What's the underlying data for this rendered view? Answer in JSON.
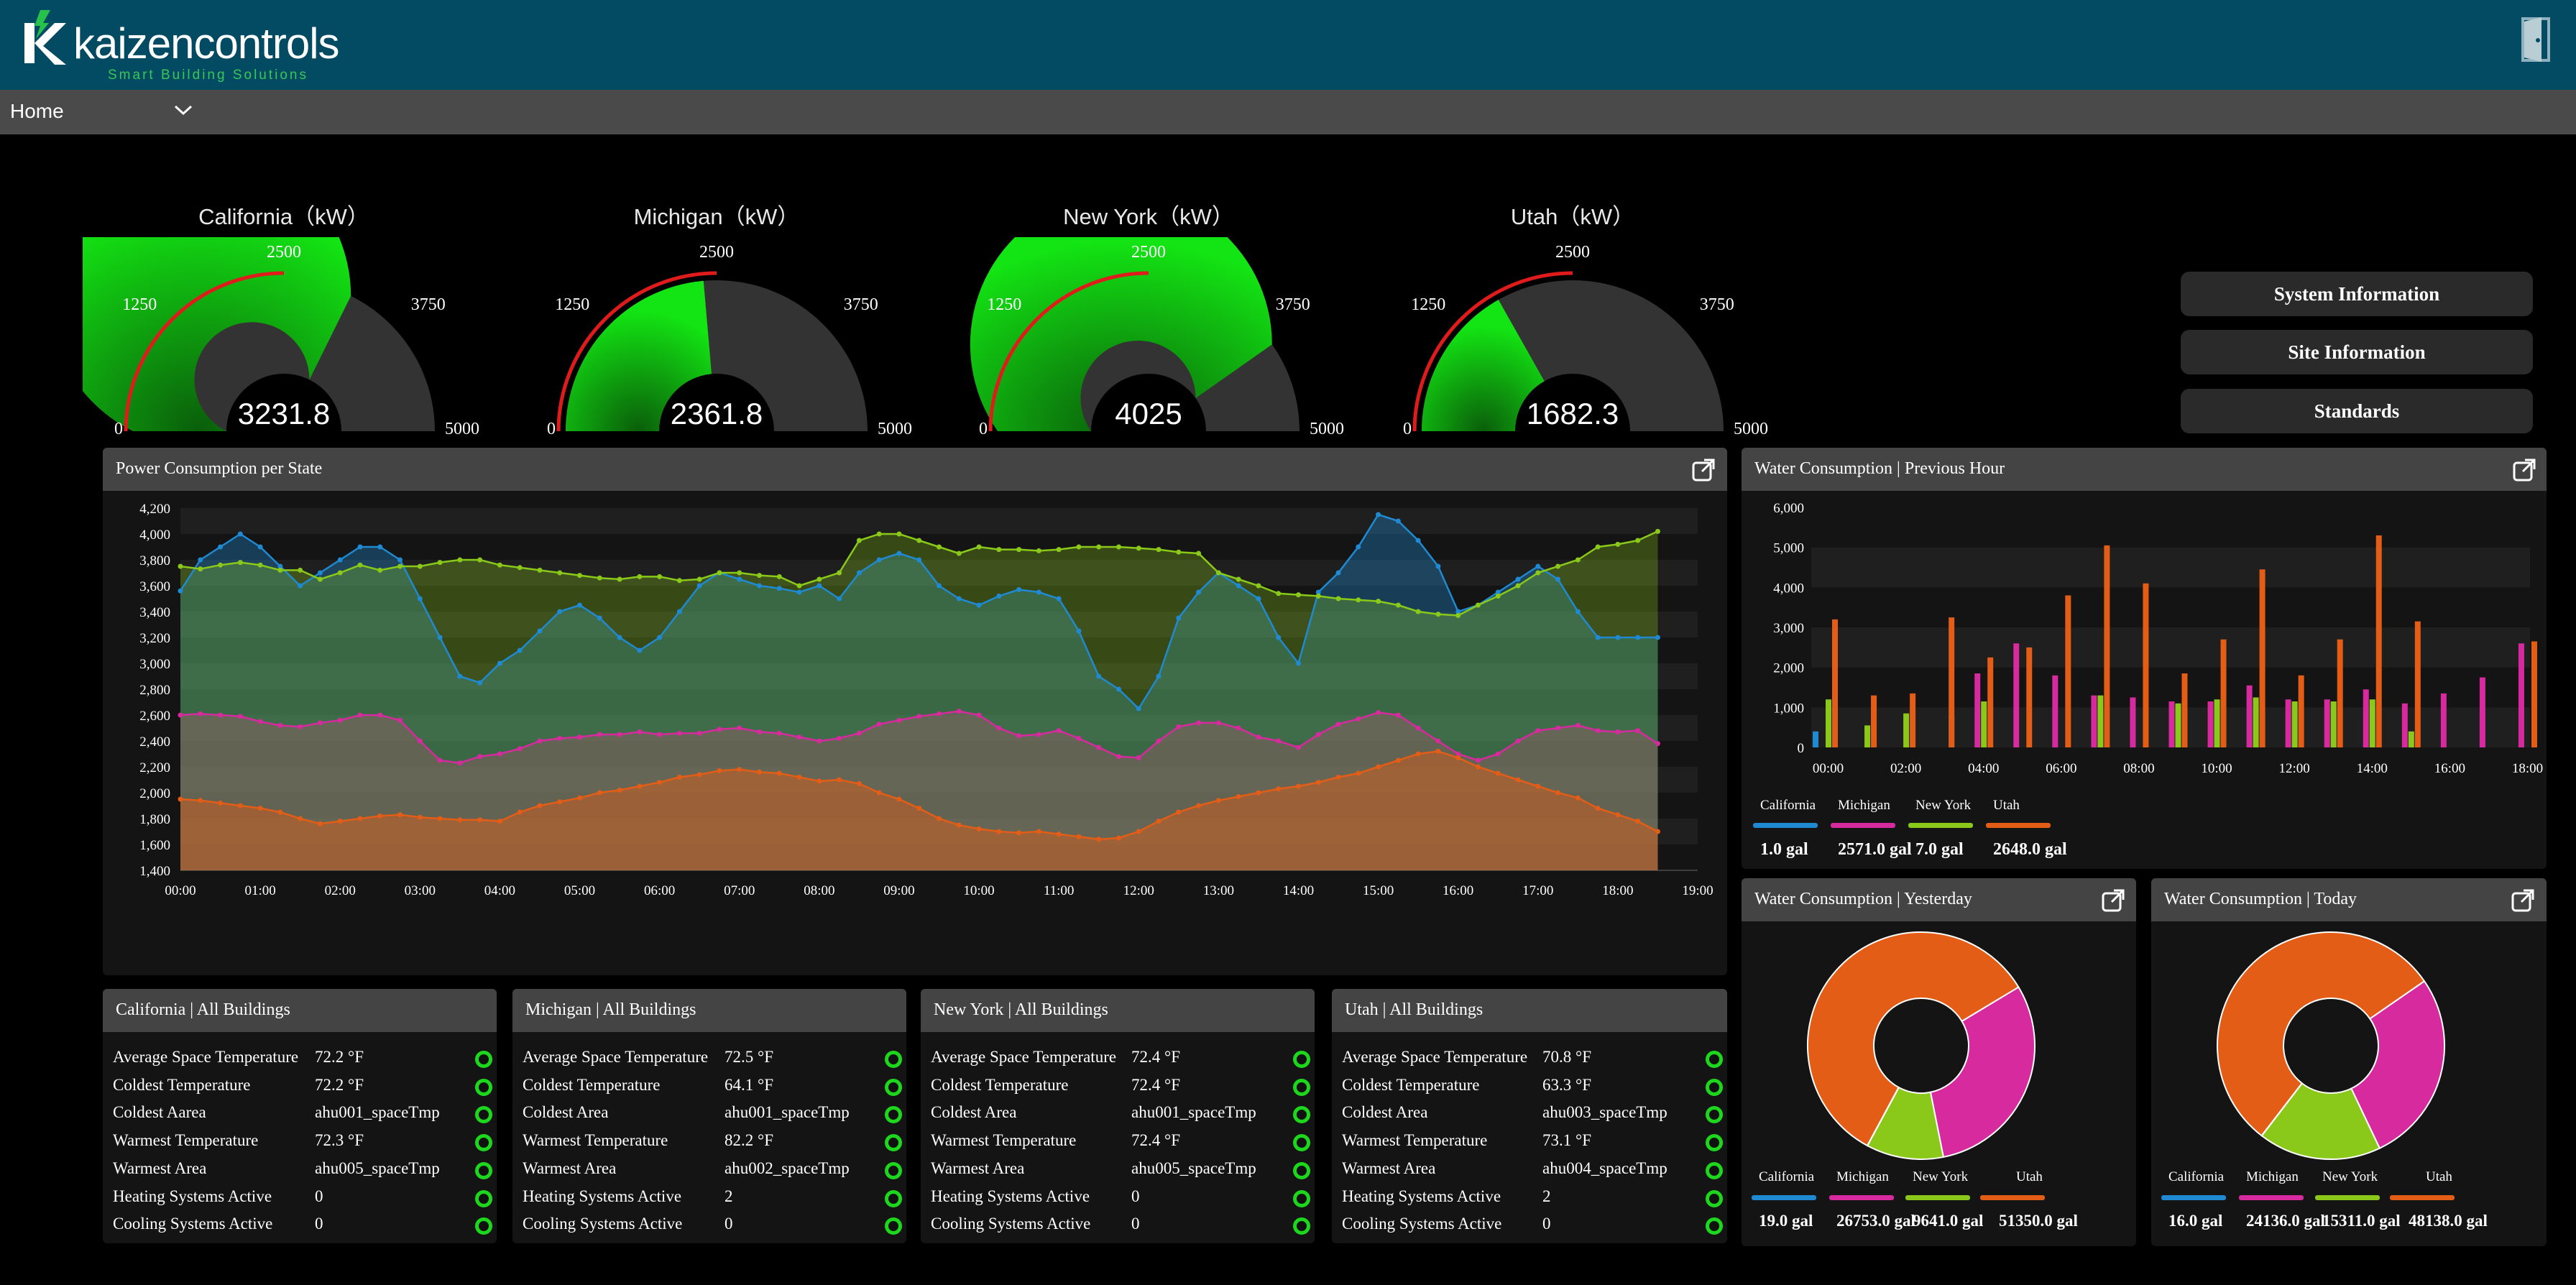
{
  "header": {
    "logo_brand_light": "kaizen",
    "logo_brand_bold": "controls",
    "logo_tagline": "Smart Building Solutions"
  },
  "nav": {
    "selected": "Home"
  },
  "gauges": [
    {
      "title": "California（kW）",
      "value": "3231.8",
      "raw": 3231.8
    },
    {
      "title": "Michigan（kW）",
      "value": "2361.8",
      "raw": 2361.8
    },
    {
      "title": "New York（kW）",
      "value": "4025",
      "raw": 4025
    },
    {
      "title": "Utah（kW）",
      "value": "1682.3",
      "raw": 1682.3
    }
  ],
  "gauge_scale": {
    "min": "0",
    "q1": "1250",
    "mid": "2500",
    "q3": "3750",
    "max": "5000"
  },
  "side_buttons": [
    "System Information",
    "Site Information",
    "Standards"
  ],
  "colors": {
    "california": "#1f8ad2",
    "michigan": "#d62a9e",
    "new_york": "#8ac91a",
    "utah": "#e35d16",
    "gauge_green": "#13e413",
    "ok": "#1dd71d"
  },
  "power_panel": {
    "title": "Power Consumption per State",
    "legend": [
      "California",
      "Michigan",
      "New York",
      "Utah"
    ]
  },
  "water_hour_panel": {
    "title": "Water Consumption | Previous Hour",
    "legend": [
      "California",
      "Michigan",
      "New York",
      "Utah"
    ],
    "totals": [
      "1.0 gal",
      "2571.0 gal",
      "7.0 gal",
      "2648.0 gal"
    ]
  },
  "water_yesterday_panel": {
    "title": "Water Consumption | Yesterday",
    "legend": [
      "California",
      "Michigan",
      "New York",
      "Utah"
    ],
    "totals": [
      "19.0 gal",
      "26753.0 gal",
      "9641.0 gal",
      "51350.0 gal"
    ]
  },
  "water_today_panel": {
    "title": "Water Consumption | Today",
    "legend": [
      "California",
      "Michigan",
      "New York",
      "Utah"
    ],
    "totals": [
      "16.0 gal",
      "24136.0 gal",
      "15311.0 gal",
      "48138.0 gal"
    ]
  },
  "buildings": [
    {
      "title": "California | All Buildings",
      "rows": [
        [
          "Average Space Temperature",
          "72.2 °F"
        ],
        [
          "Coldest Temperature",
          "72.2 °F"
        ],
        [
          "Coldest Aarea",
          "ahu001_spaceTmp"
        ],
        [
          "Warmest Temperature",
          "72.3 °F"
        ],
        [
          "Warmest Area",
          "ahu005_spaceTmp"
        ],
        [
          "Heating Systems Active",
          "0"
        ],
        [
          "Cooling Systems Active",
          "0"
        ]
      ]
    },
    {
      "title": "Michigan | All Buildings",
      "rows": [
        [
          "Average Space Temperature",
          "72.5 °F"
        ],
        [
          "Coldest Temperature",
          "64.1 °F"
        ],
        [
          "Coldest Area",
          "ahu001_spaceTmp"
        ],
        [
          "Warmest Temperature",
          "82.2 °F"
        ],
        [
          "Warmest Area",
          "ahu002_spaceTmp"
        ],
        [
          "Heating Systems Active",
          "2"
        ],
        [
          "Cooling Systems Active",
          "0"
        ]
      ]
    },
    {
      "title": "New York | All Buildings",
      "rows": [
        [
          "Average Space Temperature",
          "72.4 °F"
        ],
        [
          "Coldest Temperature",
          "72.4 °F"
        ],
        [
          "Coldest Area",
          "ahu001_spaceTmp"
        ],
        [
          "Warmest Temperature",
          "72.4 °F"
        ],
        [
          "Warmest Area",
          "ahu005_spaceTmp"
        ],
        [
          "Heating Systems Active",
          "0"
        ],
        [
          "Cooling Systems Active",
          "0"
        ]
      ]
    },
    {
      "title": "Utah | All Buildings",
      "rows": [
        [
          "Average Space Temperature",
          "70.8 °F"
        ],
        [
          "Coldest Temperature",
          "63.3 °F"
        ],
        [
          "Coldest Area",
          "ahu003_spaceTmp"
        ],
        [
          "Warmest Temperature",
          "73.1 °F"
        ],
        [
          "Warmest Area",
          "ahu004_spaceTmp"
        ],
        [
          "Heating Systems Active",
          "2"
        ],
        [
          "Cooling Systems Active",
          "0"
        ]
      ]
    }
  ],
  "chart_data": [
    {
      "type": "area",
      "title": "Power Consumption per State",
      "x": [
        "00:00",
        "00:15",
        "00:30",
        "00:45",
        "01:00",
        "01:15",
        "01:30",
        "01:45",
        "02:00",
        "02:15",
        "02:30",
        "02:45",
        "03:00",
        "03:15",
        "03:30",
        "03:45",
        "04:00",
        "04:15",
        "04:30",
        "04:45",
        "05:00",
        "05:15",
        "05:30",
        "05:45",
        "06:00",
        "06:15",
        "06:30",
        "06:45",
        "07:00",
        "07:15",
        "07:30",
        "07:45",
        "08:00",
        "08:15",
        "08:30",
        "08:45",
        "09:00",
        "09:15",
        "09:30",
        "09:45",
        "10:00",
        "10:15",
        "10:30",
        "10:45",
        "11:00",
        "11:15",
        "11:30",
        "11:45",
        "12:00",
        "12:15",
        "12:30",
        "12:45",
        "13:00",
        "13:15",
        "13:30",
        "13:45",
        "14:00",
        "14:15",
        "14:30",
        "14:45",
        "15:00",
        "15:15",
        "15:30",
        "15:45",
        "16:00",
        "16:15",
        "16:30",
        "16:45",
        "17:00",
        "17:15",
        "17:30",
        "17:45",
        "18:00",
        "18:15",
        "18:30"
      ],
      "xticks": [
        "00:00",
        "01:00",
        "02:00",
        "03:00",
        "04:00",
        "05:00",
        "06:00",
        "07:00",
        "08:00",
        "09:00",
        "10:00",
        "11:00",
        "12:00",
        "13:00",
        "14:00",
        "15:00",
        "16:00",
        "17:00",
        "18:00",
        "19:00"
      ],
      "yticks": [
        "1,400",
        "1,600",
        "1,800",
        "2,000",
        "2,200",
        "2,400",
        "2,600",
        "2,800",
        "3,000",
        "3,200",
        "3,400",
        "3,600",
        "3,800",
        "4,000",
        "4,200"
      ],
      "ylim": [
        1400,
        4200
      ],
      "xlim_hours": [
        0,
        19
      ],
      "series": [
        {
          "name": "California",
          "values": [
            3560,
            3800,
            3900,
            4000,
            3900,
            3750,
            3600,
            3700,
            3800,
            3900,
            3900,
            3800,
            3500,
            3200,
            2900,
            2850,
            3000,
            3100,
            3250,
            3400,
            3450,
            3350,
            3200,
            3100,
            3200,
            3400,
            3600,
            3700,
            3650,
            3600,
            3580,
            3550,
            3600,
            3500,
            3700,
            3800,
            3850,
            3800,
            3600,
            3500,
            3450,
            3520,
            3570,
            3550,
            3500,
            3250,
            2900,
            2800,
            2650,
            2900,
            3350,
            3550,
            3700,
            3600,
            3500,
            3200,
            3000,
            3550,
            3700,
            3900,
            4150,
            4100,
            3950,
            3750,
            3400,
            3450,
            3550,
            3650,
            3750,
            3650,
            3400,
            3200,
            3200,
            3200,
            3200
          ]
        },
        {
          "name": "Michigan",
          "values": [
            2600,
            2610,
            2600,
            2590,
            2550,
            2520,
            2510,
            2540,
            2560,
            2600,
            2600,
            2560,
            2400,
            2250,
            2230,
            2280,
            2300,
            2340,
            2400,
            2420,
            2430,
            2450,
            2450,
            2470,
            2450,
            2460,
            2460,
            2490,
            2500,
            2470,
            2460,
            2430,
            2400,
            2420,
            2460,
            2530,
            2560,
            2590,
            2610,
            2630,
            2600,
            2500,
            2440,
            2450,
            2480,
            2420,
            2350,
            2280,
            2270,
            2400,
            2510,
            2540,
            2540,
            2500,
            2430,
            2400,
            2350,
            2450,
            2530,
            2570,
            2620,
            2600,
            2500,
            2400,
            2300,
            2250,
            2300,
            2400,
            2480,
            2500,
            2520,
            2480,
            2470,
            2480,
            2380
          ]
        },
        {
          "name": "New York",
          "values": [
            3750,
            3730,
            3760,
            3780,
            3760,
            3720,
            3720,
            3650,
            3700,
            3760,
            3720,
            3750,
            3750,
            3780,
            3800,
            3800,
            3760,
            3740,
            3720,
            3700,
            3680,
            3660,
            3650,
            3670,
            3670,
            3640,
            3650,
            3700,
            3700,
            3680,
            3670,
            3600,
            3650,
            3700,
            3950,
            4000,
            4000,
            3950,
            3900,
            3850,
            3900,
            3880,
            3880,
            3870,
            3880,
            3900,
            3900,
            3900,
            3890,
            3880,
            3860,
            3850,
            3700,
            3650,
            3600,
            3540,
            3530,
            3520,
            3500,
            3490,
            3480,
            3450,
            3400,
            3380,
            3370,
            3450,
            3520,
            3600,
            3700,
            3750,
            3800,
            3900,
            3920,
            3950,
            4020
          ]
        },
        {
          "name": "Utah",
          "values": [
            1950,
            1940,
            1920,
            1900,
            1880,
            1850,
            1800,
            1760,
            1780,
            1800,
            1820,
            1830,
            1810,
            1800,
            1790,
            1790,
            1780,
            1850,
            1900,
            1930,
            1960,
            2000,
            2020,
            2050,
            2080,
            2120,
            2140,
            2170,
            2180,
            2160,
            2150,
            2120,
            2090,
            2100,
            2070,
            2000,
            1950,
            1880,
            1800,
            1750,
            1720,
            1700,
            1690,
            1700,
            1680,
            1660,
            1640,
            1650,
            1700,
            1780,
            1850,
            1900,
            1940,
            1970,
            2000,
            2030,
            2050,
            2080,
            2120,
            2150,
            2200,
            2250,
            2300,
            2320,
            2270,
            2200,
            2150,
            2100,
            2050,
            2000,
            1960,
            1880,
            1830,
            1780,
            1700
          ]
        }
      ]
    },
    {
      "type": "bar",
      "title": "Water Consumption | Previous Hour",
      "categories": [
        "00:00",
        "00:30",
        "01:00",
        "01:30",
        "02:00",
        "02:30",
        "03:00",
        "03:30",
        "04:00",
        "04:30",
        "05:00",
        "05:30",
        "06:00",
        "06:30",
        "07:00",
        "07:30",
        "08:00",
        "08:30",
        "09:00",
        "09:30",
        "10:00",
        "10:30",
        "11:00",
        "11:30",
        "12:00",
        "12:30",
        "13:00",
        "13:30",
        "14:00",
        "14:30",
        "15:00",
        "15:30",
        "16:00",
        "16:30",
        "17:00",
        "17:30",
        "18:00"
      ],
      "xticks": [
        "00:00",
        "02:00",
        "04:00",
        "06:00",
        "08:00",
        "10:00",
        "12:00",
        "14:00",
        "16:00",
        "18:00"
      ],
      "yticks": [
        "0",
        "1,000",
        "2,000",
        "3,000",
        "4,000",
        "5,000",
        "6,000"
      ],
      "ylim": [
        0,
        6000
      ],
      "series": [
        {
          "name": "California",
          "values": [
            400,
            0,
            0,
            0,
            0,
            0,
            0,
            800,
            0,
            0,
            0,
            0,
            0,
            0,
            0,
            0,
            0,
            0,
            0,
            0,
            0,
            0,
            0,
            0,
            0,
            0,
            0,
            0,
            0,
            0,
            0,
            0,
            0,
            0,
            0,
            0,
            0
          ]
        },
        {
          "name": "Michigan",
          "values": [
            0,
            0,
            0,
            0,
            0,
            0,
            0,
            0,
            1850,
            0,
            2600,
            0,
            1800,
            0,
            1300,
            0,
            1250,
            0,
            1150,
            0,
            1150,
            0,
            1550,
            0,
            1200,
            0,
            1200,
            0,
            1450,
            0,
            1100,
            0,
            1350,
            0,
            1750,
            0,
            2600
          ]
        },
        {
          "name": "New York",
          "values": [
            1200,
            0,
            550,
            0,
            850,
            0,
            0,
            0,
            1150,
            0,
            0,
            0,
            0,
            0,
            1300,
            0,
            0,
            0,
            1100,
            0,
            1200,
            0,
            1250,
            0,
            1150,
            0,
            1150,
            0,
            1200,
            0,
            400,
            0,
            0,
            0,
            0,
            0,
            0
          ]
        },
        {
          "name": "Utah",
          "values": [
            3200,
            0,
            1300,
            0,
            1350,
            0,
            3250,
            0,
            2250,
            0,
            2500,
            0,
            3800,
            0,
            5050,
            0,
            4100,
            0,
            1850,
            0,
            2700,
            0,
            4450,
            0,
            1800,
            0,
            2700,
            0,
            5300,
            0,
            3150,
            0,
            0,
            0,
            0,
            0,
            2650
          ]
        }
      ]
    },
    {
      "type": "pie",
      "title": "Water Consumption | Yesterday",
      "categories": [
        "California",
        "Michigan",
        "New York",
        "Utah"
      ],
      "values": [
        19.0,
        26753.0,
        9641.0,
        51350.0
      ]
    },
    {
      "type": "pie",
      "title": "Water Consumption | Today",
      "categories": [
        "California",
        "Michigan",
        "New York",
        "Utah"
      ],
      "values": [
        16.0,
        24136.0,
        15311.0,
        48138.0
      ]
    }
  ]
}
